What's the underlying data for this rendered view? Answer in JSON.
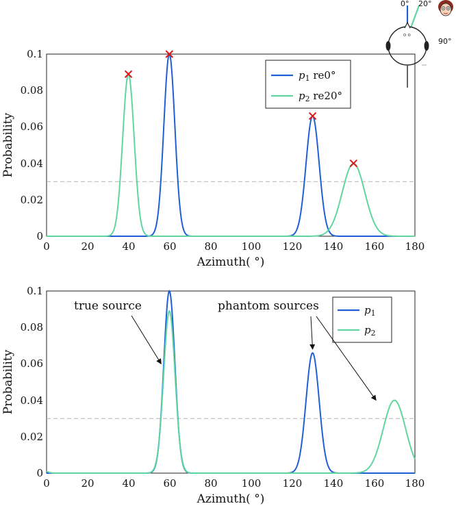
{
  "colors": {
    "p1": "#1f5fd6",
    "p2": "#5fd6a0",
    "marker": "#e01818",
    "threshold": "#b0b0b0"
  },
  "chart_data": [
    {
      "type": "line",
      "xlabel": "Azimuth( °)",
      "ylabel": "Probability",
      "xlim": [
        0,
        180
      ],
      "ylim": [
        0,
        0.1
      ],
      "xticks": [
        "0",
        "20",
        "40",
        "60",
        "80",
        "100",
        "120",
        "140",
        "160",
        "180"
      ],
      "yticks": [
        "0",
        "0.02",
        "0.04",
        "0.06",
        "0.08",
        "0.1"
      ],
      "threshold": 0.03,
      "legend_position": "top-right",
      "series": [
        {
          "name": "p1 re0°",
          "label_main": "p",
          "label_sub": "1",
          "label_tail": " re0°",
          "color_key": "p1",
          "peaks": [
            {
              "x": 60,
              "y": 0.1,
              "sigma": 2.7
            },
            {
              "x": 130,
              "y": 0.066,
              "sigma": 3.2
            }
          ]
        },
        {
          "name": "p2 re20°",
          "label_main": "p",
          "label_sub": "2",
          "label_tail": " re20°",
          "color_key": "p2",
          "peaks": [
            {
              "x": 40,
              "y": 0.089,
              "sigma": 2.8
            },
            {
              "x": 150,
              "y": 0.04,
              "sigma": 5.5
            }
          ]
        }
      ],
      "markers": [
        {
          "x": 40,
          "y": 0.089
        },
        {
          "x": 60,
          "y": 0.1
        },
        {
          "x": 130,
          "y": 0.066
        },
        {
          "x": 150,
          "y": 0.04
        }
      ]
    },
    {
      "type": "line",
      "xlabel": "Azimuth( °)",
      "ylabel": "Probability",
      "xlim": [
        0,
        180
      ],
      "ylim": [
        0,
        0.1
      ],
      "xticks": [
        "0",
        "20",
        "40",
        "60",
        "80",
        "100",
        "120",
        "140",
        "160",
        "180"
      ],
      "yticks": [
        "0",
        "0.02",
        "0.04",
        "0.06",
        "0.08",
        "0.1"
      ],
      "threshold": 0.03,
      "legend_position": "top-right",
      "series": [
        {
          "name": "p1",
          "label_main": "p",
          "label_sub": "1",
          "label_tail": "",
          "color_key": "p1",
          "peaks": [
            {
              "x": 60,
              "y": 0.1,
              "sigma": 2.7
            },
            {
              "x": 130,
              "y": 0.066,
              "sigma": 3.2
            }
          ]
        },
        {
          "name": "p2",
          "label_main": "p",
          "label_sub": "2",
          "label_tail": "",
          "color_key": "p2",
          "peaks": [
            {
              "x": 60,
              "y": 0.089,
              "sigma": 2.8
            },
            {
              "x": 170,
              "y": 0.04,
              "sigma": 5.5
            },
            {
              "x": -4,
              "y": 0.004,
              "sigma": 2.5
            }
          ]
        }
      ],
      "annotations": [
        {
          "text": "true source",
          "points_to": [
            {
              "x": 56,
              "y": 0.06
            }
          ]
        },
        {
          "text": "phantom sources",
          "points_to": [
            {
              "x": 130,
              "y": 0.068
            },
            {
              "x": 161,
              "y": 0.04
            }
          ]
        }
      ]
    }
  ],
  "inset": {
    "labels": [
      "0°",
      "20°",
      "90°"
    ]
  }
}
